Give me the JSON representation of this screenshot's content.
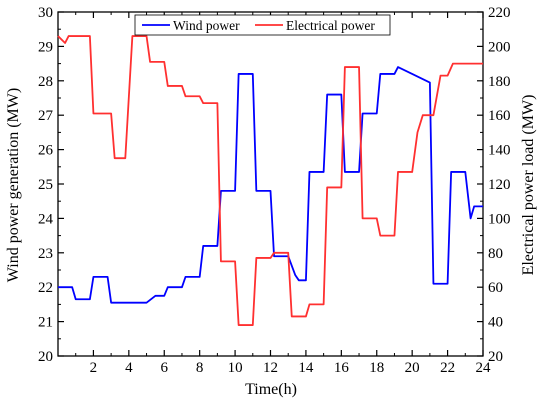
{
  "chart_data": {
    "type": "line",
    "xlabel": "Time(h)",
    "ylabel_left": "Wind power generation (MW)",
    "ylabel_right": "Electrical power load (MW)",
    "xlim": [
      0,
      24
    ],
    "ylim_left": [
      20,
      30
    ],
    "ylim_right": [
      20,
      220
    ],
    "x_ticks": [
      2,
      4,
      6,
      8,
      10,
      12,
      14,
      16,
      18,
      20,
      22,
      24
    ],
    "y_left_ticks": [
      20,
      21,
      22,
      23,
      24,
      25,
      26,
      27,
      28,
      29,
      30
    ],
    "y_right_ticks": [
      20,
      40,
      60,
      80,
      100,
      120,
      140,
      160,
      180,
      200,
      220
    ],
    "grid": false,
    "legend": "top-center",
    "series": [
      {
        "name": "Wind power",
        "axis": "left",
        "color": "#0000ff",
        "points": [
          [
            0,
            22.0
          ],
          [
            0.8,
            22.0
          ],
          [
            1.0,
            21.65
          ],
          [
            1.8,
            21.65
          ],
          [
            2.0,
            22.3
          ],
          [
            2.8,
            22.3
          ],
          [
            3.0,
            21.55
          ],
          [
            4.8,
            21.55
          ],
          [
            5.0,
            21.55
          ],
          [
            5.5,
            21.75
          ],
          [
            6.0,
            21.75
          ],
          [
            6.2,
            22.0
          ],
          [
            7.0,
            22.0
          ],
          [
            7.2,
            22.3
          ],
          [
            8.0,
            22.3
          ],
          [
            8.2,
            23.2
          ],
          [
            9.0,
            23.2
          ],
          [
            9.2,
            24.8
          ],
          [
            10.0,
            24.8
          ],
          [
            10.2,
            28.2
          ],
          [
            11.0,
            28.2
          ],
          [
            11.2,
            24.8
          ],
          [
            12.0,
            24.8
          ],
          [
            12.2,
            22.9
          ],
          [
            13.0,
            22.9
          ],
          [
            13.4,
            22.35
          ],
          [
            13.6,
            22.2
          ],
          [
            14.0,
            22.2
          ],
          [
            14.2,
            25.35
          ],
          [
            15.0,
            25.35
          ],
          [
            15.2,
            27.6
          ],
          [
            16.0,
            27.6
          ],
          [
            16.2,
            25.35
          ],
          [
            17.0,
            25.35
          ],
          [
            17.2,
            27.05
          ],
          [
            18.0,
            27.05
          ],
          [
            18.2,
            28.2
          ],
          [
            19.0,
            28.2
          ],
          [
            19.2,
            28.4
          ],
          [
            20.0,
            28.2
          ],
          [
            21.0,
            27.95
          ],
          [
            21.2,
            22.1
          ],
          [
            22.0,
            22.1
          ],
          [
            22.2,
            25.35
          ],
          [
            23.0,
            25.35
          ],
          [
            23.3,
            24.0
          ],
          [
            23.5,
            24.35
          ],
          [
            24.0,
            24.35
          ]
        ]
      },
      {
        "name": "Electrical power",
        "axis": "right",
        "color": "#ff3030",
        "points": [
          [
            0,
            206
          ],
          [
            0.4,
            202
          ],
          [
            0.6,
            206
          ],
          [
            1.8,
            206
          ],
          [
            2.0,
            161
          ],
          [
            3.0,
            161
          ],
          [
            3.2,
            135
          ],
          [
            3.8,
            135
          ],
          [
            4.2,
            206
          ],
          [
            5.0,
            206
          ],
          [
            5.2,
            191
          ],
          [
            6.0,
            191
          ],
          [
            6.2,
            177
          ],
          [
            7.0,
            177
          ],
          [
            7.2,
            171
          ],
          [
            8.0,
            171
          ],
          [
            8.2,
            167
          ],
          [
            9.0,
            167
          ],
          [
            9.2,
            75
          ],
          [
            10.0,
            75
          ],
          [
            10.2,
            38
          ],
          [
            11.0,
            38
          ],
          [
            11.2,
            77
          ],
          [
            12.0,
            77
          ],
          [
            12.2,
            80
          ],
          [
            13.0,
            80
          ],
          [
            13.2,
            43
          ],
          [
            14.0,
            43
          ],
          [
            14.2,
            50
          ],
          [
            15.0,
            50
          ],
          [
            15.2,
            118
          ],
          [
            16.0,
            118
          ],
          [
            16.2,
            188
          ],
          [
            17.0,
            188
          ],
          [
            17.2,
            100
          ],
          [
            18.0,
            100
          ],
          [
            18.2,
            90
          ],
          [
            19.0,
            90
          ],
          [
            19.2,
            127
          ],
          [
            20.0,
            127
          ],
          [
            20.3,
            150
          ],
          [
            20.6,
            160
          ],
          [
            21.2,
            160
          ],
          [
            21.6,
            183
          ],
          [
            22.0,
            183
          ],
          [
            22.3,
            190
          ],
          [
            24.0,
            190
          ]
        ]
      }
    ]
  }
}
